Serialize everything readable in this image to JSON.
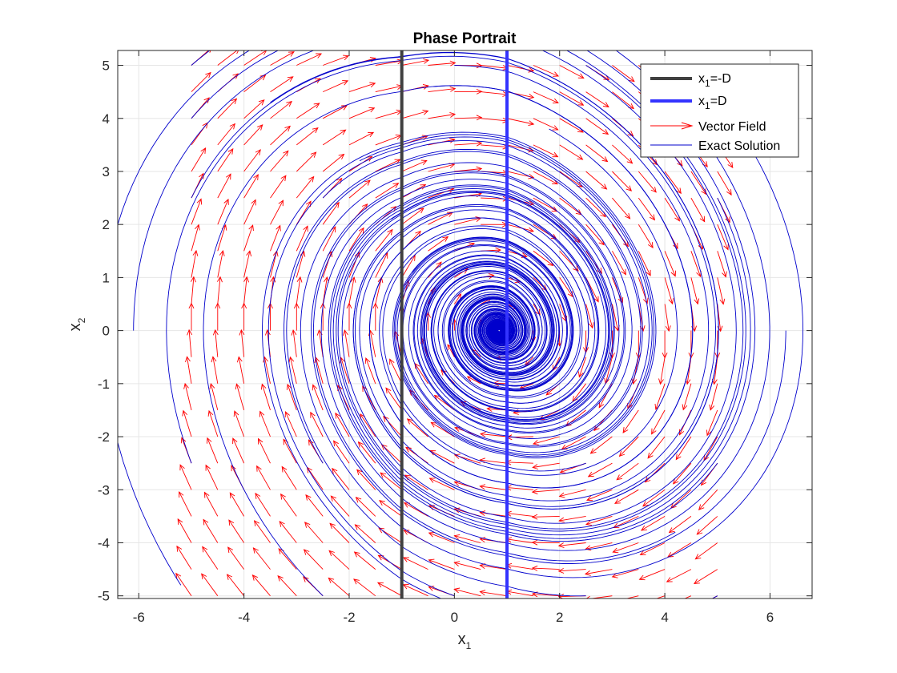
{
  "chart_data": {
    "type": "line",
    "title": "Phase Portrait",
    "xlabel": {
      "base": "x",
      "sub": "1"
    },
    "ylabel": {
      "base": "x",
      "sub": "2"
    },
    "xlim": [
      -6.4,
      6.8
    ],
    "ylim": [
      -5.05,
      5.28
    ],
    "xticks": [
      -6,
      -4,
      -2,
      0,
      2,
      4,
      6
    ],
    "yticks": [
      -5,
      -4,
      -3,
      -2,
      -1,
      0,
      1,
      2,
      3,
      4,
      5
    ],
    "xtick_labels": [
      "-6",
      "-4",
      "-2",
      "0",
      "2",
      "4",
      "6"
    ],
    "ytick_labels": [
      "-5",
      "-4",
      "-3",
      "-2",
      "-1",
      "0",
      "1",
      "2",
      "3",
      "4",
      "5"
    ],
    "grid": true,
    "legend_position": "top-right",
    "D": 1,
    "vertical_lines": [
      {
        "name": "x1=-D",
        "x": -1,
        "color": "#404040"
      },
      {
        "name": "x1=D",
        "x": 1,
        "color": "#3333ff"
      }
    ],
    "legend": [
      {
        "base": "x",
        "sub": "1",
        "rest": "=-D",
        "kind": "thick-line",
        "color": "#404040"
      },
      {
        "base": "x",
        "sub": "1",
        "rest": "=D",
        "kind": "thick-line",
        "color": "#3333ff"
      },
      {
        "text": "Vector Field",
        "kind": "arrow",
        "color": "#ff0000"
      },
      {
        "text": "Exact Solution",
        "kind": "thin-line",
        "color": "#0000cc"
      }
    ],
    "equilibrium": [
      0.85,
      0.0
    ],
    "vector_field": {
      "name": "Vector Field",
      "color": "#ff0000",
      "x_range": [
        -5,
        5
      ],
      "y_range": [
        -5,
        5
      ],
      "grid_step": 0.5
    },
    "trajectories": {
      "name": "Exact Solution",
      "color": "#0000cc",
      "initial_conditions": [
        [
          -5,
          5
        ],
        [
          -5,
          4
        ],
        [
          -5,
          2.5
        ],
        [
          -5,
          -2.5
        ],
        [
          -5.2,
          -4.8
        ],
        [
          -6.1,
          0
        ],
        [
          -2.5,
          2.5
        ],
        [
          -2.5,
          -2.5
        ],
        [
          -2.5,
          -5
        ],
        [
          -3.5,
          4.3
        ],
        [
          -1.8,
          3.2
        ],
        [
          -1.2,
          2.1
        ],
        [
          -0.8,
          1.1
        ],
        [
          5,
          2.5
        ],
        [
          5,
          -5
        ],
        [
          5,
          -2.5
        ],
        [
          2.5,
          5
        ],
        [
          2.5,
          -2.5
        ],
        [
          2.5,
          -5
        ],
        [
          4.8,
          4.6
        ],
        [
          6.3,
          0
        ],
        [
          4.2,
          -3.8
        ],
        [
          0,
          5
        ],
        [
          0,
          -5
        ],
        [
          1.8,
          3.8
        ],
        [
          -0.4,
          4.6
        ]
      ]
    }
  }
}
